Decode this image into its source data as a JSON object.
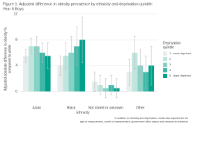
{
  "chart_data": {
    "type": "bar",
    "title": [
      "Figure 1: Adjusted difference in obesity prevalence by ethnicity and deprivation quintile:",
      "Year 6 Boys"
    ],
    "y_label": [
      "Adjusted absolute difference in obesity %",
      "compared to white"
    ],
    "x_label": "Ethnicity",
    "legend_title": [
      "Deprivation",
      "quintile"
    ],
    "notes": [
      "In addition to ethnicity and deprivation, model also adjusted for the",
      "age at measurement, month of measurement, government office region and urban/rural residence"
    ],
    "categories": [
      "Asian",
      "Black",
      "Not stated or unknown",
      "Other"
    ],
    "series": [
      {
        "name": "1 - most deprived",
        "color": "#e6eeed",
        "values": [
          5.5,
          4,
          1.5,
          3
        ],
        "errors": [
          1,
          1.5,
          1.5,
          2
        ]
      },
      {
        "name": "2",
        "color": "#bfe5de",
        "values": [
          7,
          5.5,
          1,
          6
        ],
        "errors": [
          1.2,
          2,
          1.5,
          2.5
        ]
      },
      {
        "name": "3",
        "color": "#86d2c5",
        "values": [
          7,
          6,
          0.5,
          4
        ],
        "errors": [
          1.5,
          2.5,
          1.5,
          2.5
        ]
      },
      {
        "name": "4",
        "color": "#3fb9a7",
        "values": [
          6,
          7,
          1,
          3
        ],
        "errors": [
          1.5,
          3,
          1.5,
          2.5
        ]
      },
      {
        "name": "5 - least deprived",
        "color": "#00a08a",
        "values": [
          5.5,
          8,
          0.5,
          4
        ],
        "errors": [
          2,
          3.5,
          1.5,
          3
        ]
      }
    ],
    "ylim": [
      -2,
      12
    ],
    "yticks": [
      0,
      4,
      8,
      12
    ],
    "grid": true
  }
}
